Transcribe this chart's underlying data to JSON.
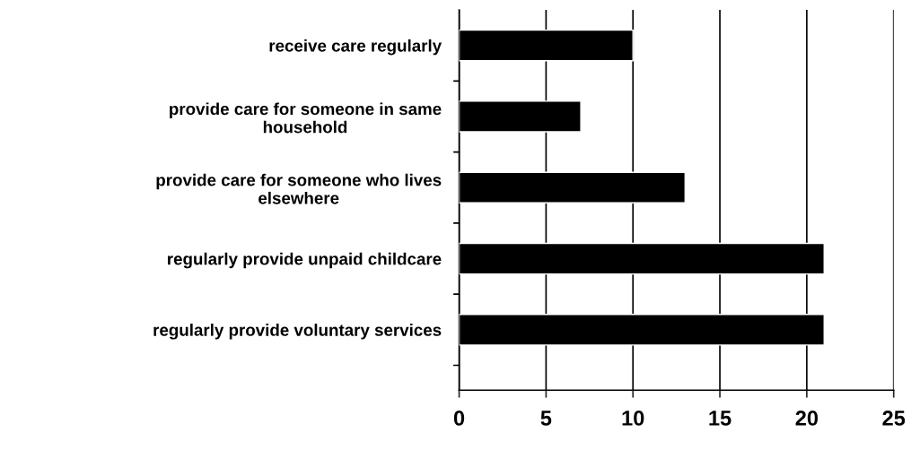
{
  "chart_data": {
    "type": "bar",
    "orientation": "horizontal",
    "categories": [
      "receive care regularly",
      "provide care for someone in same household",
      "provide care for someone who lives elsewhere",
      "regularly provide unpaid childcare",
      "regularly provide voluntary services"
    ],
    "values": [
      10,
      7,
      13,
      21,
      21
    ],
    "color": "#000000",
    "xlim": [
      0,
      25
    ],
    "xticks": [
      0,
      5,
      10,
      15,
      20,
      25
    ],
    "grid": "x",
    "legend": false
  }
}
